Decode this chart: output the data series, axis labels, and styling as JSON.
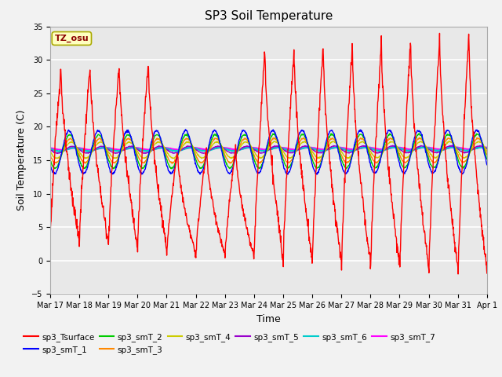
{
  "title": "SP3 Soil Temperature",
  "ylabel": "Soil Temperature (C)",
  "xlabel": "Time",
  "annotation": "TZ_osu",
  "ylim": [
    -5,
    35
  ],
  "x_tick_labels": [
    "Mar 17",
    "Mar 18",
    "Mar 19",
    "Mar 20",
    "Mar 21",
    "Mar 22",
    "Mar 23",
    "Mar 24",
    "Mar 25",
    "Mar 26",
    "Mar 27",
    "Mar 28",
    "Mar 29",
    "Mar 30",
    "Mar 31",
    "Apr 1"
  ],
  "series_order": [
    "sp3_smT_7",
    "sp3_smT_6",
    "sp3_smT_5",
    "sp3_smT_4",
    "sp3_smT_3",
    "sp3_smT_2",
    "sp3_smT_1",
    "sp3_Tsurface"
  ],
  "legend_order": [
    "sp3_Tsurface",
    "sp3_smT_1",
    "sp3_smT_2",
    "sp3_smT_3",
    "sp3_smT_4",
    "sp3_smT_5",
    "sp3_smT_6",
    "sp3_smT_7"
  ],
  "series": {
    "sp3_Tsurface": {
      "color": "#FF0000",
      "lw": 1.0
    },
    "sp3_smT_1": {
      "color": "#0000FF",
      "lw": 1.0
    },
    "sp3_smT_2": {
      "color": "#00CC00",
      "lw": 1.0
    },
    "sp3_smT_3": {
      "color": "#FF8800",
      "lw": 1.0
    },
    "sp3_smT_4": {
      "color": "#CCCC00",
      "lw": 1.0
    },
    "sp3_smT_5": {
      "color": "#9900CC",
      "lw": 1.0
    },
    "sp3_smT_6": {
      "color": "#00CCCC",
      "lw": 1.5
    },
    "sp3_smT_7": {
      "color": "#FF00FF",
      "lw": 1.5
    }
  },
  "fig_bg_color": "#F2F2F2",
  "plot_bg_color": "#E8E8E8",
  "grid_color": "#FFFFFF",
  "title_fontsize": 11,
  "tick_fontsize": 7,
  "label_fontsize": 9,
  "n_days": 15,
  "pts_per_day": 96
}
